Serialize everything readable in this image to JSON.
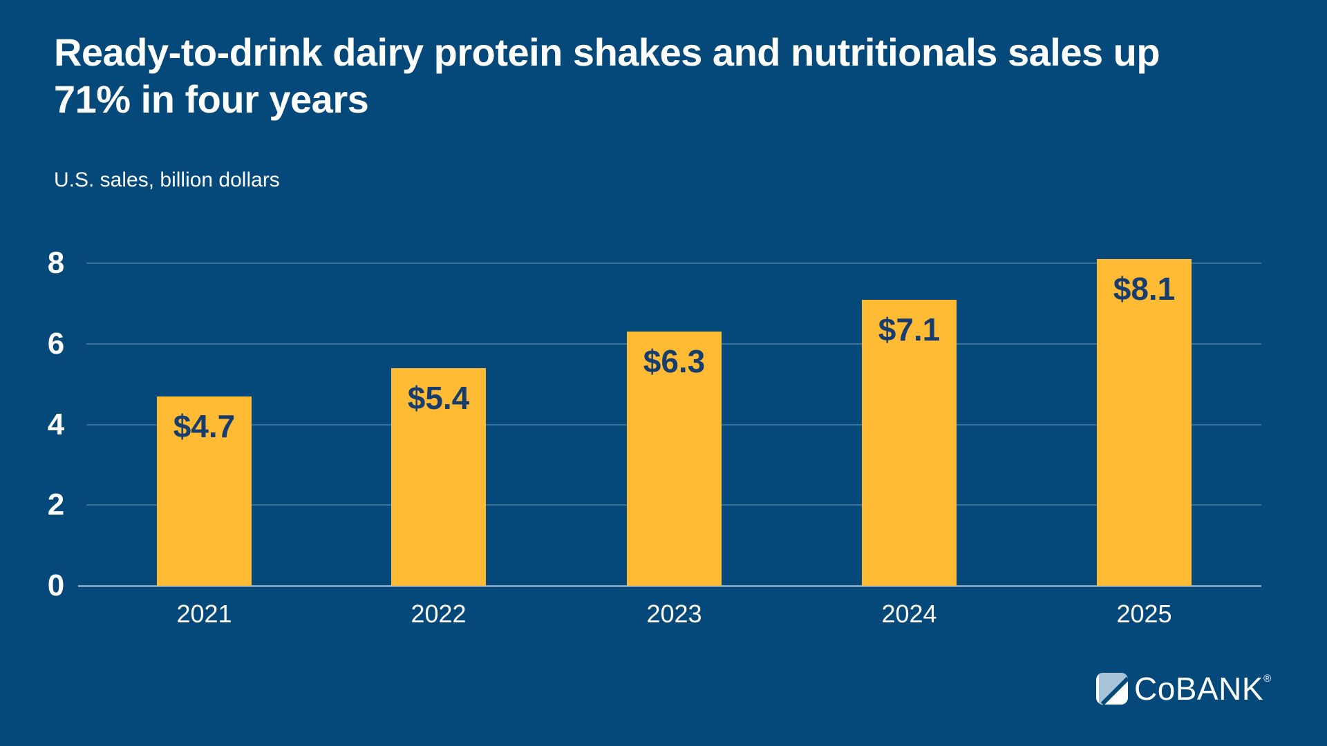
{
  "header": {
    "title_line1": "Ready-to-drink dairy protein shakes and nutritionals sales up",
    "title_line2": "71% in four years",
    "subtitle": "U.S. sales, billion dollars"
  },
  "logo": {
    "brand": "CoBANK",
    "registered": "®",
    "icon": "cobank-mark-icon",
    "mark_light_color": "#A9C3D8",
    "mark_white_color": "#FFFFFF"
  },
  "colors": {
    "background": "#04497A",
    "bar": "#FFBB33",
    "bar_label": "#173C6E",
    "axis_text": "#FFFFFF",
    "gridline": "rgba(255,255,255,0.22)",
    "zeroline": "rgba(226,233,238,0.55)"
  },
  "chart_data": {
    "type": "bar",
    "title": "Ready-to-drink dairy protein shakes and nutritionals sales up 71% in four years",
    "subtitle": "U.S. sales, billion dollars",
    "xlabel": "",
    "ylabel": "U.S. sales, billion dollars",
    "categories": [
      "2021",
      "2022",
      "2023",
      "2024",
      "2025"
    ],
    "values": [
      4.7,
      5.4,
      6.3,
      7.1,
      8.1
    ],
    "bar_labels": [
      "$4.7",
      "$5.4",
      "$6.3",
      "$7.1",
      "$8.1"
    ],
    "yticks": [
      0,
      2,
      4,
      6,
      8
    ],
    "ylim": [
      0,
      8.5
    ],
    "grid": true,
    "legend": "none"
  }
}
